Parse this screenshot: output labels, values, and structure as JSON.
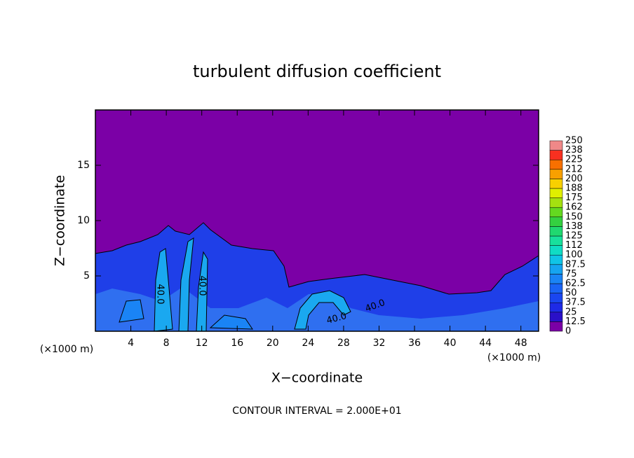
{
  "chart_data": {
    "type": "contour",
    "title": "turbulent diffusion coefficient",
    "xlabel": "X−coordinate",
    "ylabel": "Z−coordinate",
    "x_unit": "(×1000 m)",
    "footer": "CONTOUR INTERVAL = 2.000E+01",
    "xlim": [
      0,
      50
    ],
    "xticks": [
      4,
      8,
      12,
      16,
      20,
      24,
      28,
      32,
      36,
      40,
      44,
      48
    ],
    "ylim": [
      0,
      20
    ],
    "yticks": [
      5,
      10,
      15
    ],
    "contour_labels": [
      "40.0",
      "40.0",
      "40.0",
      "40.0"
    ],
    "colorbar": {
      "levels": [
        0,
        12.5,
        25,
        37.5,
        50,
        62.5,
        75,
        87.5,
        100,
        {
          "value": 112.5,
          "label": "112"
        },
        125,
        {
          "value": 137.5,
          "label": "138"
        },
        150,
        {
          "value": 162.5,
          "label": "162"
        },
        175,
        {
          "value": 187.5,
          "label": "188"
        },
        200,
        {
          "value": 212.5,
          "label": "212"
        },
        225,
        {
          "value": 237.5,
          "label": "238"
        },
        250
      ],
      "colors": [
        "#7b00a6",
        "#2a10c8",
        "#1e2ae6",
        "#1a46f0",
        "#1a64f5",
        "#1a84f5",
        "#16a4f0",
        "#10c4e6",
        "#10dcc4",
        "#18e09c",
        "#20d870",
        "#34d040",
        "#64d820",
        "#a4e010",
        "#e0ef00",
        "#f8d000",
        "#f8a000",
        "#f87000",
        "#f83020",
        "#f08888"
      ]
    }
  }
}
